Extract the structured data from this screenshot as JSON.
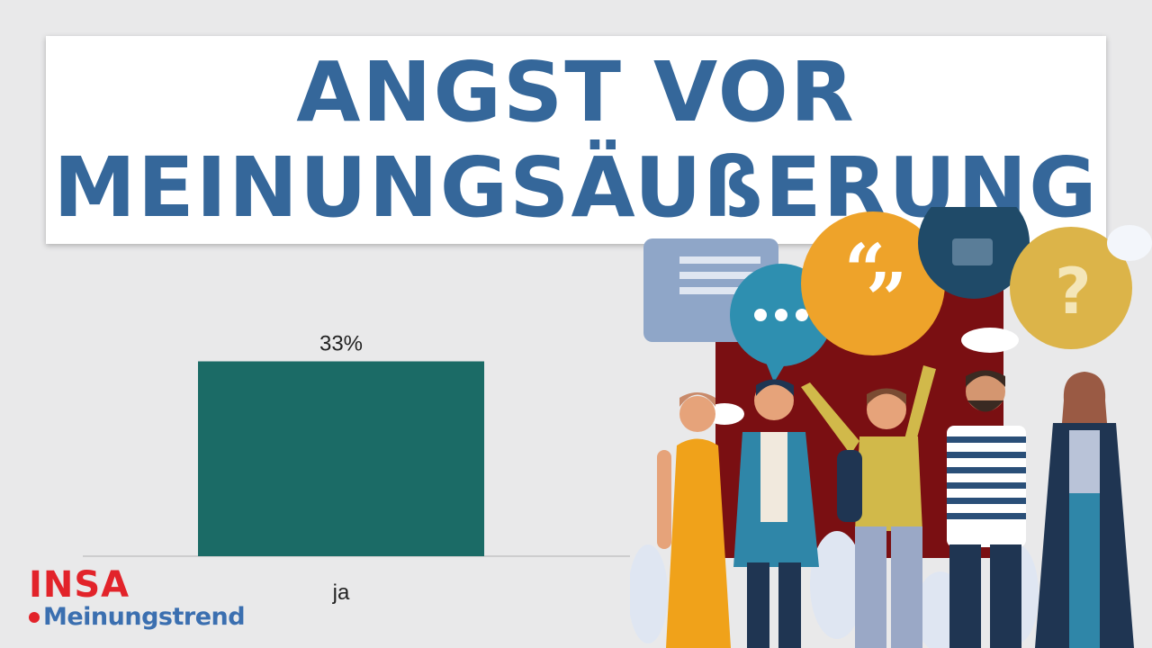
{
  "title": {
    "line1": "ANGST VOR",
    "line2": "MEINUNGSÄUßERUNG"
  },
  "logo": {
    "brand": "INSA",
    "sub": "Meinungstrend"
  },
  "colors": {
    "title": "#35679a",
    "bar": "#1b6b66",
    "logo_red": "#e2232a",
    "logo_blue": "#3b6fb0"
  },
  "illustration": {
    "icon": "people-speech-bubbles-illustration"
  },
  "chart_data": {
    "type": "bar",
    "categories": [
      "ja"
    ],
    "values": [
      33
    ],
    "data_labels": [
      "33%"
    ],
    "ylim": [
      0,
      50
    ],
    "grid": false,
    "legend": "none"
  }
}
